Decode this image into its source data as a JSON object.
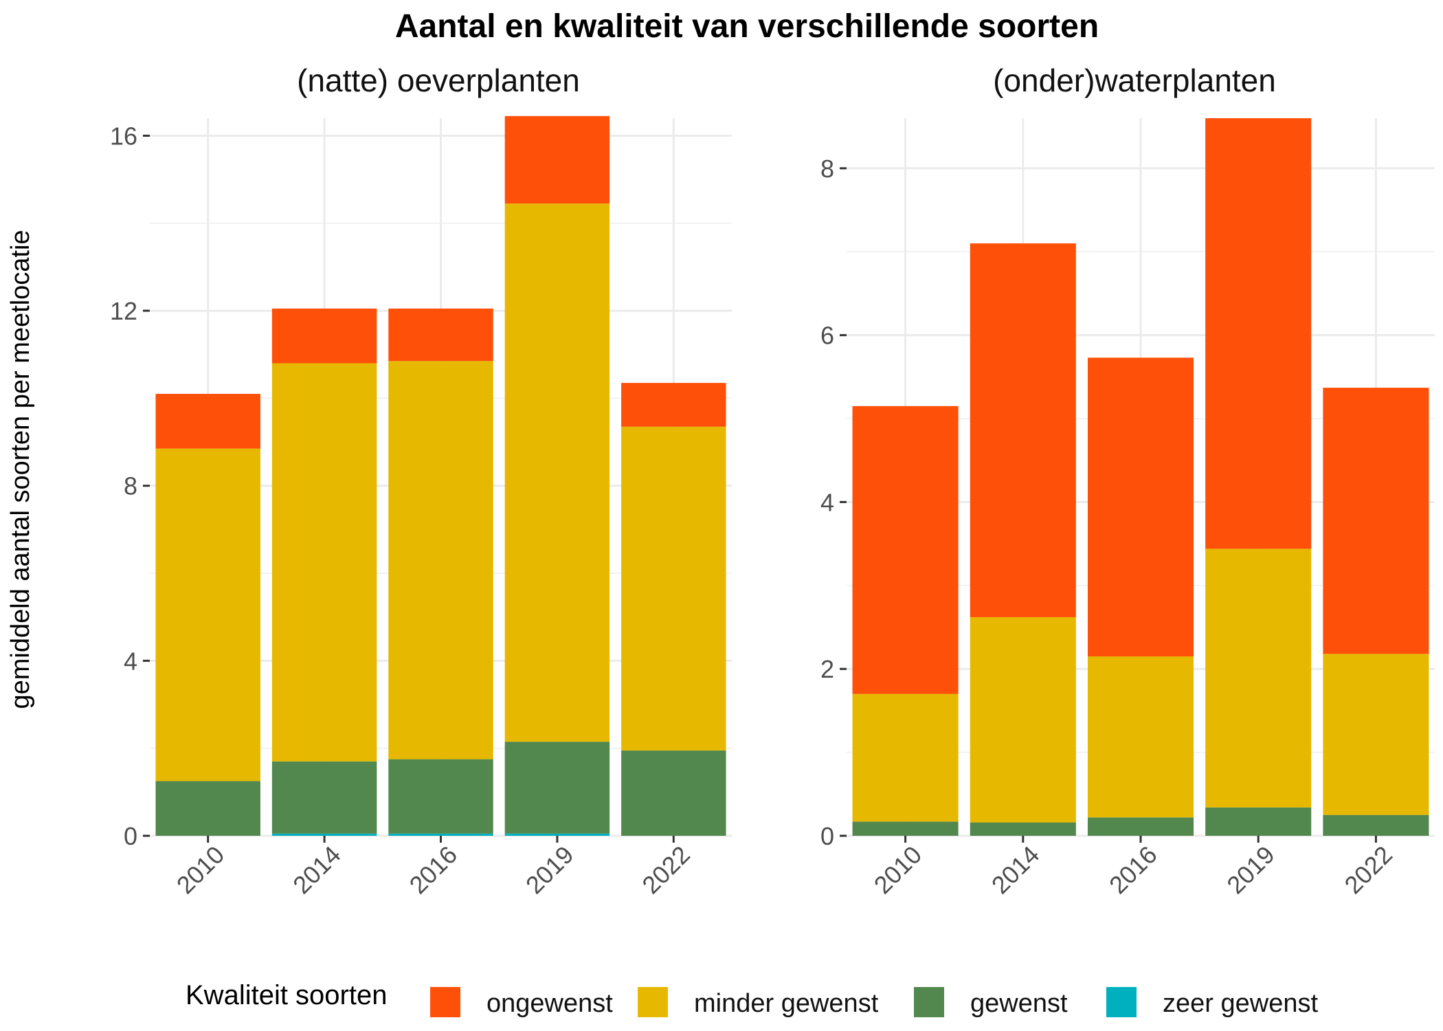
{
  "chart_data": {
    "type": "bar",
    "stacked": true,
    "title": "Aantal en kwaliteit van verschillende soorten",
    "ylabel": "gemiddeld aantal soorten per meetlocatie",
    "legend": {
      "title": "Kwaliteit soorten",
      "position": "bottom",
      "entries": [
        "ongewenst",
        "minder gewenst",
        "gewenst",
        "zeer gewenst"
      ]
    },
    "colors": {
      "ongewenst": "#FF5009",
      "minder gewenst": "#E6B900",
      "gewenst": "#52874D",
      "zeer gewenst": "#00B0BE"
    },
    "grid": true,
    "panels": [
      {
        "subtitle": "(natte) oeverplanten",
        "categories": [
          "2010",
          "2014",
          "2016",
          "2019",
          "2022"
        ],
        "ylim": [
          0,
          16.4
        ],
        "yticks": [
          "0",
          "4",
          "8",
          "12",
          "16"
        ],
        "series": [
          {
            "name": "zeer gewenst",
            "values": [
              0.0,
              0.05,
              0.05,
              0.05,
              0.0
            ]
          },
          {
            "name": "gewenst",
            "values": [
              1.25,
              1.65,
              1.7,
              2.1,
              1.95
            ]
          },
          {
            "name": "minder gewenst",
            "values": [
              7.6,
              9.1,
              9.1,
              12.3,
              7.4
            ]
          },
          {
            "name": "ongewenst",
            "values": [
              1.25,
              1.25,
              1.2,
              2.0,
              1.0
            ]
          }
        ]
      },
      {
        "subtitle": "(onder)waterplanten",
        "categories": [
          "2010",
          "2014",
          "2016",
          "2019",
          "2022"
        ],
        "ylim": [
          0,
          8.6
        ],
        "yticks": [
          "0",
          "2",
          "4",
          "6",
          "8"
        ],
        "series": [
          {
            "name": "zeer gewenst",
            "values": [
              0.0,
              0.0,
              0.0,
              0.0,
              0.0
            ]
          },
          {
            "name": "gewenst",
            "values": [
              0.17,
              0.16,
              0.22,
              0.34,
              0.25
            ]
          },
          {
            "name": "minder gewenst",
            "values": [
              1.53,
              2.46,
              1.93,
              3.1,
              1.93
            ]
          },
          {
            "name": "ongewenst",
            "values": [
              3.45,
              4.48,
              3.58,
              5.16,
              3.19
            ]
          }
        ]
      }
    ]
  }
}
